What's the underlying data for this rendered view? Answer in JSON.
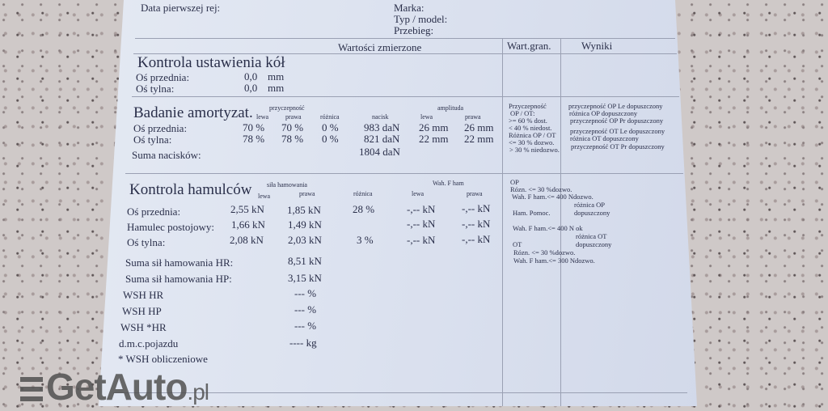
{
  "header": {
    "first_reg": "Data pierwszej rej:",
    "make": "Marka:",
    "model": "Typ / model:",
    "mileage": "Przebieg:"
  },
  "columns": {
    "measured": "Wartości zmierzone",
    "limits": "Wart.gran.",
    "results": "Wyniki"
  },
  "alignment": {
    "title": "Kontrola ustawienia kół",
    "rows": [
      {
        "label": "Oś przednia:",
        "value": "0,0",
        "unit": "mm"
      },
      {
        "label": "Oś tylna:",
        "value": "0,0",
        "unit": "mm"
      }
    ]
  },
  "shock": {
    "title": "Badanie amortyzat.",
    "h_lewa": "lewa",
    "h_grip": "przyczepność",
    "h_prawa": "prawa",
    "h_diff": "różnica",
    "h_load": "nacisk",
    "h_amp": "amplituda",
    "h_amp_l": "lewa",
    "h_amp_r": "prawa",
    "rows": [
      {
        "label": "Oś przednia:",
        "left": "70  %",
        "right": "70  %",
        "diff": "0  %",
        "load": "983  daN",
        "amp_l": "26  mm",
        "amp_r": "26  mm"
      },
      {
        "label": "Oś tylna:",
        "left": "78  %",
        "right": "78  %",
        "diff": "0  %",
        "load": "821  daN",
        "amp_l": "22  mm",
        "amp_r": "22  mm"
      }
    ],
    "sum_label": "Suma nacisków:",
    "sum_value": "1804  daN",
    "limits": [
      "Przyczepność",
      "OP / OT:",
      ">=    60 %  dost.",
      "<    40 % niedost.",
      "Różnica OP / OT",
      "<= 30 %  dozwo.",
      "> 30 % niedozwo."
    ],
    "results": [
      "przyczepność OP Le dopuszczony",
      "różnica OP dopuszczony",
      "przyczepność OP Pr dopuszczony",
      "przyczepność OT Le dopuszczony",
      "różnica OT dopuszczony",
      "przyczepność OT Pr dopuszczony"
    ]
  },
  "brakes": {
    "title": "Kontrola hamulców",
    "h_lewa": "lewa",
    "h_force": "siła hamowania",
    "h_prawa": "prawa",
    "h_diff": "różnica",
    "h_wah": "Wah. F ham",
    "h_wah_l": "lewa",
    "h_wah_r": "prawa",
    "rows": [
      {
        "label": "Oś przednia:",
        "left": "2,55  kN",
        "right": "1,85  kN",
        "diff": "28  %",
        "wl": "-,--  kN",
        "wr": "-,--  kN"
      },
      {
        "label": "Hamulec postojowy:",
        "left": "1,66  kN",
        "right": "1,49  kN",
        "diff": "",
        "wl": "-,--  kN",
        "wr": "-,--  kN"
      },
      {
        "label": "Oś tylna:",
        "left": "2,08  kN",
        "right": "2,03  kN",
        "diff": "3  %",
        "wl": "-,--  kN",
        "wr": "-,--  kN"
      }
    ],
    "sums": [
      {
        "label": "Suma sił hamowania HR:",
        "value": "8,51  kN"
      },
      {
        "label": "Suma sił hamowania HP:",
        "value": "3,15  kN"
      },
      {
        "label": "WSH HR",
        "value": "---  %"
      },
      {
        "label": "WSH HP",
        "value": "---  %"
      },
      {
        "label": "WSH *HR",
        "value": "---  %"
      },
      {
        "label": "d.m.c.pojazdu",
        "value": "----  kg"
      }
    ],
    "footnote": "* WSH obliczeniowe",
    "limits": [
      "OP",
      "Rózn. <=    30 %dozwo.",
      "Wah. F ham.<=  400 Ndozwo.",
      "Ham. Pomoc.",
      "Wah. F ham.<=  400 N ok",
      "OT",
      "Rózn. <=    30 %dozwo.",
      "Wah. F ham.<=  300 Ndozwo."
    ],
    "results": [
      "różnica OP",
      "dopuszczony",
      "różnica OT",
      "dopuszczony"
    ]
  },
  "watermark": {
    "brand": "GetAuto",
    ".tld": ".pl"
  }
}
